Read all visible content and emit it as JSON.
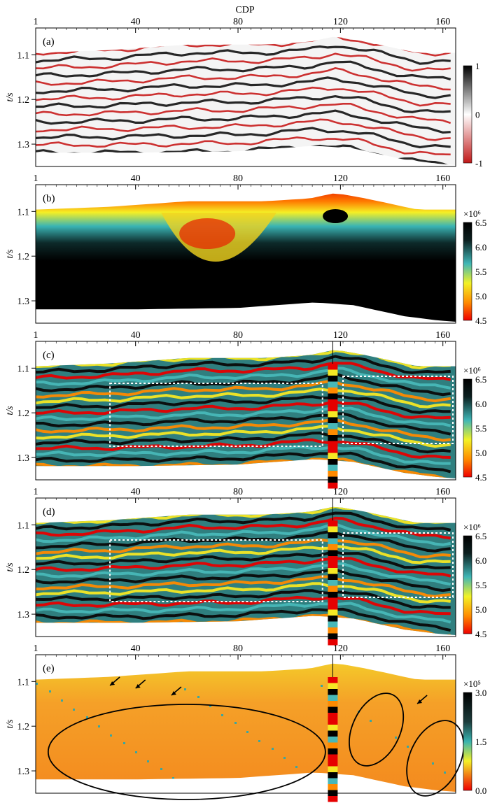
{
  "figure": {
    "x_axis_label": "CDP",
    "y_axis_label": "t/s",
    "x_ticks": [
      "1",
      "40",
      "80",
      "120",
      "160"
    ],
    "y_ticks": [
      "1.1",
      "1.2",
      "1.3"
    ]
  },
  "panels": [
    {
      "label": "(a)",
      "colorbar_exponent": "",
      "colorbar_ticks": [
        "1",
        "0",
        "-1"
      ]
    },
    {
      "label": "(b)",
      "colorbar_exponent": "×10⁶",
      "colorbar_ticks": [
        "6.5",
        "6.0",
        "5.5",
        "5.0",
        "4.5"
      ]
    },
    {
      "label": "(c)",
      "colorbar_exponent": "×10⁶",
      "colorbar_ticks": [
        "6.5",
        "6.0",
        "5.5",
        "5.0",
        "4.5"
      ]
    },
    {
      "label": "(d)",
      "colorbar_exponent": "×10⁶",
      "colorbar_ticks": [
        "6.5",
        "6.0",
        "5.5",
        "5.0",
        "4.5"
      ]
    },
    {
      "label": "(e)",
      "colorbar_exponent": "×10⁵",
      "colorbar_ticks": [
        "3.0",
        "1.5",
        "0.0"
      ]
    }
  ],
  "chart_data": [
    {
      "type": "heatmap",
      "panel": "(a)",
      "xlabel": "CDP",
      "ylabel": "t/s",
      "xlim": [
        1,
        165
      ],
      "ylim": [
        1.35,
        1.04
      ],
      "colorbar": {
        "min": -1,
        "max": 1,
        "ticks": [
          1,
          0,
          -1
        ]
      },
      "description_values": "seismic amplitude section"
    },
    {
      "type": "heatmap",
      "panel": "(b)",
      "xlabel": "CDP",
      "ylabel": "t/s",
      "xlim": [
        1,
        165
      ],
      "ylim": [
        1.35,
        1.04
      ],
      "colorbar": {
        "min": 4.5,
        "max": 6.5,
        "scale": "×10⁶",
        "ticks": [
          6.5,
          6.0,
          5.5,
          5.0,
          4.5
        ]
      }
    },
    {
      "type": "heatmap",
      "panel": "(c)",
      "xlabel": "CDP",
      "ylabel": "t/s",
      "xlim": [
        1,
        165
      ],
      "ylim": [
        1.35,
        1.04
      ],
      "colorbar": {
        "min": 4.5,
        "max": 6.5,
        "scale": "×10⁶",
        "ticks": [
          6.5,
          6.0,
          5.5,
          5.0,
          4.5
        ]
      },
      "well_cdp": 117
    },
    {
      "type": "heatmap",
      "panel": "(d)",
      "xlabel": "CDP",
      "ylabel": "t/s",
      "xlim": [
        1,
        165
      ],
      "ylim": [
        1.35,
        1.04
      ],
      "colorbar": {
        "min": 4.5,
        "max": 6.5,
        "scale": "×10⁶",
        "ticks": [
          6.5,
          6.0,
          5.5,
          5.0,
          4.5
        ]
      },
      "well_cdp": 117
    },
    {
      "type": "heatmap",
      "panel": "(e)",
      "xlabel": "CDP",
      "ylabel": "t/s",
      "xlim": [
        1,
        165
      ],
      "ylim": [
        1.35,
        1.04
      ],
      "colorbar": {
        "min": 0.0,
        "max": 3.0,
        "scale": "×10⁵",
        "ticks": [
          3.0,
          1.5,
          0.0
        ]
      },
      "well_cdp": 117
    }
  ]
}
